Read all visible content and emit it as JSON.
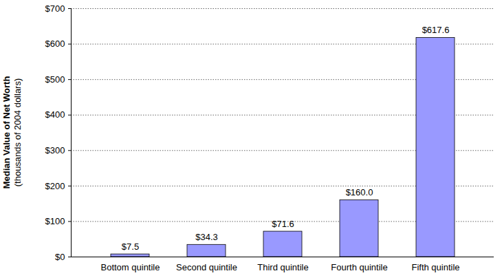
{
  "chart_data": {
    "type": "bar",
    "y_label": [
      "Median Value of Net Worth",
      "(thousands of 2004 dollars)"
    ],
    "categories": [
      "Bottom quintile",
      "Second quintile",
      "Third quintile",
      "Fourth quintile",
      "Fifth quintile"
    ],
    "values": [
      7.5,
      34.3,
      71.6,
      160.0,
      617.6
    ],
    "value_labels": [
      "$7.5",
      "$34.3",
      "$71.6",
      "$160.0",
      "$617.6"
    ],
    "data_labels": true,
    "color": "#9999ff",
    "ylim": [
      0,
      700
    ],
    "yticks": [
      {
        "value": 0,
        "label": "$0"
      },
      {
        "value": 100,
        "label": "$100"
      },
      {
        "value": 200,
        "label": "$200"
      },
      {
        "value": 300,
        "label": "$300"
      },
      {
        "value": 400,
        "label": "$400"
      },
      {
        "value": 500,
        "label": "$500"
      },
      {
        "value": 600,
        "label": "$600"
      },
      {
        "value": 700,
        "label": "$700"
      }
    ],
    "grid": true
  }
}
